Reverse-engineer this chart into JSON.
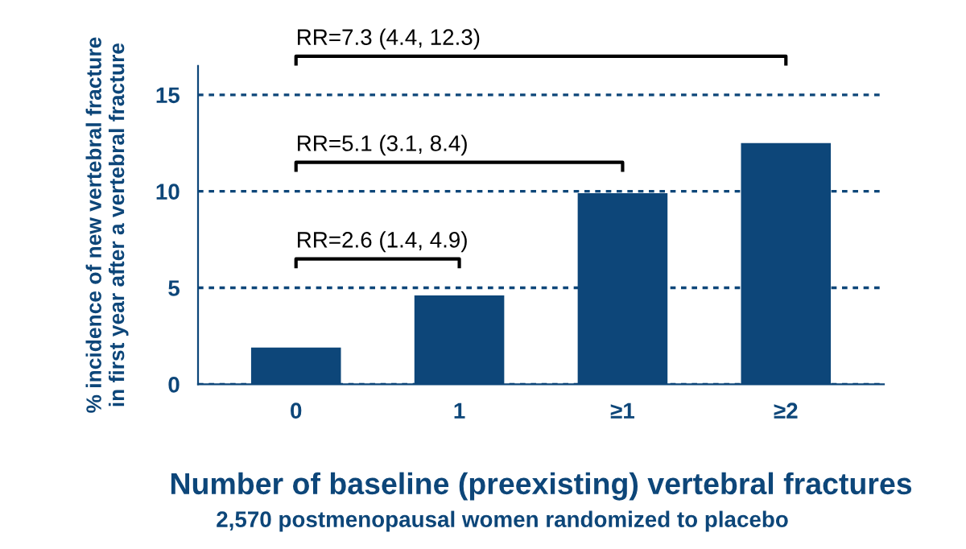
{
  "chart_data": {
    "type": "bar",
    "xlabel": "Number of baseline (preexisting) vertebral fractures",
    "subtitle": "2,570 postmenopausal women randomized to placebo",
    "ylabel": "% incidence of new vertebral fracture\nin first year after a vertebral fracture",
    "categories": [
      "0",
      "1",
      "≥1",
      "≥2"
    ],
    "values": [
      1.9,
      4.6,
      9.9,
      12.5
    ],
    "color": "#0d4679",
    "ylim": [
      0,
      16.5
    ],
    "yticks": [
      0,
      5,
      10,
      15
    ],
    "grid": "y",
    "annotations": [
      "RR=2.6 (1.4, 4.9)",
      "RR=5.1 (3.1, 8.4)",
      "RR=7.3 (4.4, 12.3)"
    ]
  }
}
